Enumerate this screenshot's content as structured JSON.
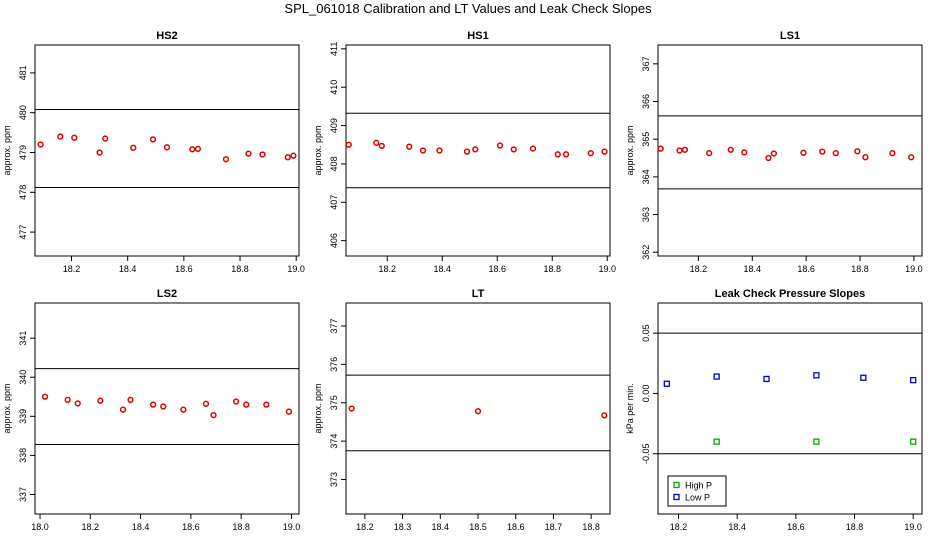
{
  "title": "SPL_061018  Calibration and LT Values and Leak Check Slopes",
  "colors": {
    "points": "#dd0000",
    "high_p": "#00aa00",
    "low_p": "#0000cc",
    "axis": "#000000"
  },
  "chart_data": [
    {
      "type": "scatter",
      "title": "HS2",
      "ylabel": "approx. ppm",
      "xlim": [
        18.07,
        19.01
      ],
      "ylim": [
        476.4,
        481.7
      ],
      "xticks": [
        18.2,
        18.4,
        18.6,
        18.8,
        19.0
      ],
      "xtick_labels": [
        "18.2",
        "18.4",
        "18.6",
        "18.8",
        "19.0"
      ],
      "yticks": [
        477,
        478,
        479,
        480,
        481
      ],
      "ytick_labels": [
        "477",
        "478",
        "479",
        "480",
        "481"
      ],
      "hlines": [
        480.08,
        478.12
      ],
      "x": [
        18.09,
        18.16,
        18.21,
        18.3,
        18.32,
        18.42,
        18.49,
        18.54,
        18.63,
        18.65,
        18.75,
        18.83,
        18.88,
        18.97,
        18.99
      ],
      "y": [
        479.2,
        479.4,
        479.37,
        479.0,
        479.35,
        479.12,
        479.33,
        479.13,
        479.08,
        479.09,
        478.83,
        478.97,
        478.95,
        478.88,
        478.92
      ]
    },
    {
      "type": "scatter",
      "title": "HS1",
      "ylabel": "approx. ppm",
      "xlim": [
        18.05,
        19.01
      ],
      "ylim": [
        405.6,
        411.1
      ],
      "xticks": [
        18.2,
        18.4,
        18.6,
        18.8,
        19.0
      ],
      "xtick_labels": [
        "18.2",
        "18.4",
        "18.6",
        "18.8",
        "19.0"
      ],
      "yticks": [
        406,
        407,
        408,
        409,
        410,
        411
      ],
      "ytick_labels": [
        "406",
        "407",
        "408",
        "409",
        "410",
        "411"
      ],
      "hlines": [
        409.32,
        407.38
      ],
      "x": [
        18.06,
        18.16,
        18.18,
        18.28,
        18.33,
        18.39,
        18.49,
        18.52,
        18.61,
        18.66,
        18.73,
        18.82,
        18.85,
        18.94,
        18.99
      ],
      "y": [
        408.5,
        408.55,
        408.47,
        408.45,
        408.35,
        408.35,
        408.32,
        408.38,
        408.48,
        408.38,
        408.4,
        408.25,
        408.25,
        408.28,
        408.32
      ]
    },
    {
      "type": "scatter",
      "title": "LS1",
      "ylabel": "approx. ppm",
      "xlim": [
        18.05,
        19.03
      ],
      "ylim": [
        361.9,
        367.5
      ],
      "xticks": [
        18.2,
        18.4,
        18.6,
        18.8,
        19.0
      ],
      "xtick_labels": [
        "18.2",
        "18.4",
        "18.6",
        "18.8",
        "19.0"
      ],
      "yticks": [
        362,
        363,
        364,
        365,
        366,
        367
      ],
      "ytick_labels": [
        "362",
        "363",
        "364",
        "365",
        "366",
        "367"
      ],
      "hlines": [
        365.62,
        363.68
      ],
      "x": [
        18.06,
        18.13,
        18.15,
        18.24,
        18.32,
        18.37,
        18.46,
        18.48,
        18.59,
        18.66,
        18.71,
        18.79,
        18.82,
        18.92,
        18.99
      ],
      "y": [
        364.75,
        364.7,
        364.72,
        364.63,
        364.72,
        364.65,
        364.5,
        364.62,
        364.64,
        364.67,
        364.63,
        364.68,
        364.52,
        364.63,
        364.52
      ]
    },
    {
      "type": "scatter",
      "title": "LS2",
      "ylabel": "approx. ppm",
      "xlim": [
        17.98,
        19.03
      ],
      "ylim": [
        336.5,
        341.9
      ],
      "xticks": [
        18.0,
        18.2,
        18.4,
        18.6,
        18.8,
        19.0
      ],
      "xtick_labels": [
        "18.0",
        "18.2",
        "18.4",
        "18.6",
        "18.8",
        "19.0"
      ],
      "yticks": [
        337,
        338,
        339,
        340,
        341
      ],
      "ytick_labels": [
        "337",
        "338",
        "339",
        "340",
        "341"
      ],
      "hlines": [
        340.22,
        338.28
      ],
      "x": [
        18.02,
        18.11,
        18.15,
        18.24,
        18.33,
        18.36,
        18.45,
        18.49,
        18.57,
        18.66,
        18.69,
        18.78,
        18.82,
        18.9,
        18.99
      ],
      "y": [
        339.5,
        339.42,
        339.33,
        339.4,
        339.17,
        339.42,
        339.3,
        339.25,
        339.17,
        339.32,
        339.03,
        339.38,
        339.3,
        339.3,
        339.12
      ]
    },
    {
      "type": "scatter",
      "title": "LT",
      "ylabel": "approx. ppm",
      "xlim": [
        18.15,
        18.85
      ],
      "ylim": [
        372.1,
        377.6
      ],
      "xticks": [
        18.2,
        18.3,
        18.4,
        18.5,
        18.6,
        18.7,
        18.8
      ],
      "xtick_labels": [
        "18.2",
        "18.3",
        "18.4",
        "18.5",
        "18.6",
        "18.7",
        "18.8"
      ],
      "yticks": [
        373,
        374,
        375,
        376,
        377
      ],
      "ytick_labels": [
        "373",
        "374",
        "375",
        "376",
        "377"
      ],
      "hlines": [
        375.72,
        373.75
      ],
      "x": [
        18.165,
        18.5,
        18.835
      ],
      "y": [
        374.85,
        374.78,
        374.67
      ]
    },
    {
      "type": "scatter",
      "title": "Leak Check Pressure Slopes",
      "ylabel": "kPa per min.",
      "xlim": [
        18.13,
        19.03
      ],
      "ylim": [
        -0.1,
        0.075
      ],
      "xticks": [
        18.2,
        18.4,
        18.6,
        18.8,
        19.0
      ],
      "xtick_labels": [
        "18.2",
        "18.4",
        "18.6",
        "18.8",
        "19.0"
      ],
      "yticks": [
        -0.05,
        0.0,
        0.05
      ],
      "ytick_labels": [
        "-0.05",
        "0.00",
        "0.05"
      ],
      "hlines": [
        0.05,
        -0.05
      ],
      "legend": {
        "position": "bottom-left"
      },
      "series": [
        {
          "name": "High P",
          "x": [
            18.33,
            18.67,
            19.0
          ],
          "y": [
            -0.04,
            -0.04,
            -0.04
          ]
        },
        {
          "name": "Low P",
          "x": [
            18.16,
            18.33,
            18.5,
            18.67,
            18.83,
            19.0
          ],
          "y": [
            0.008,
            0.014,
            0.012,
            0.015,
            0.013,
            0.011
          ]
        }
      ]
    }
  ]
}
